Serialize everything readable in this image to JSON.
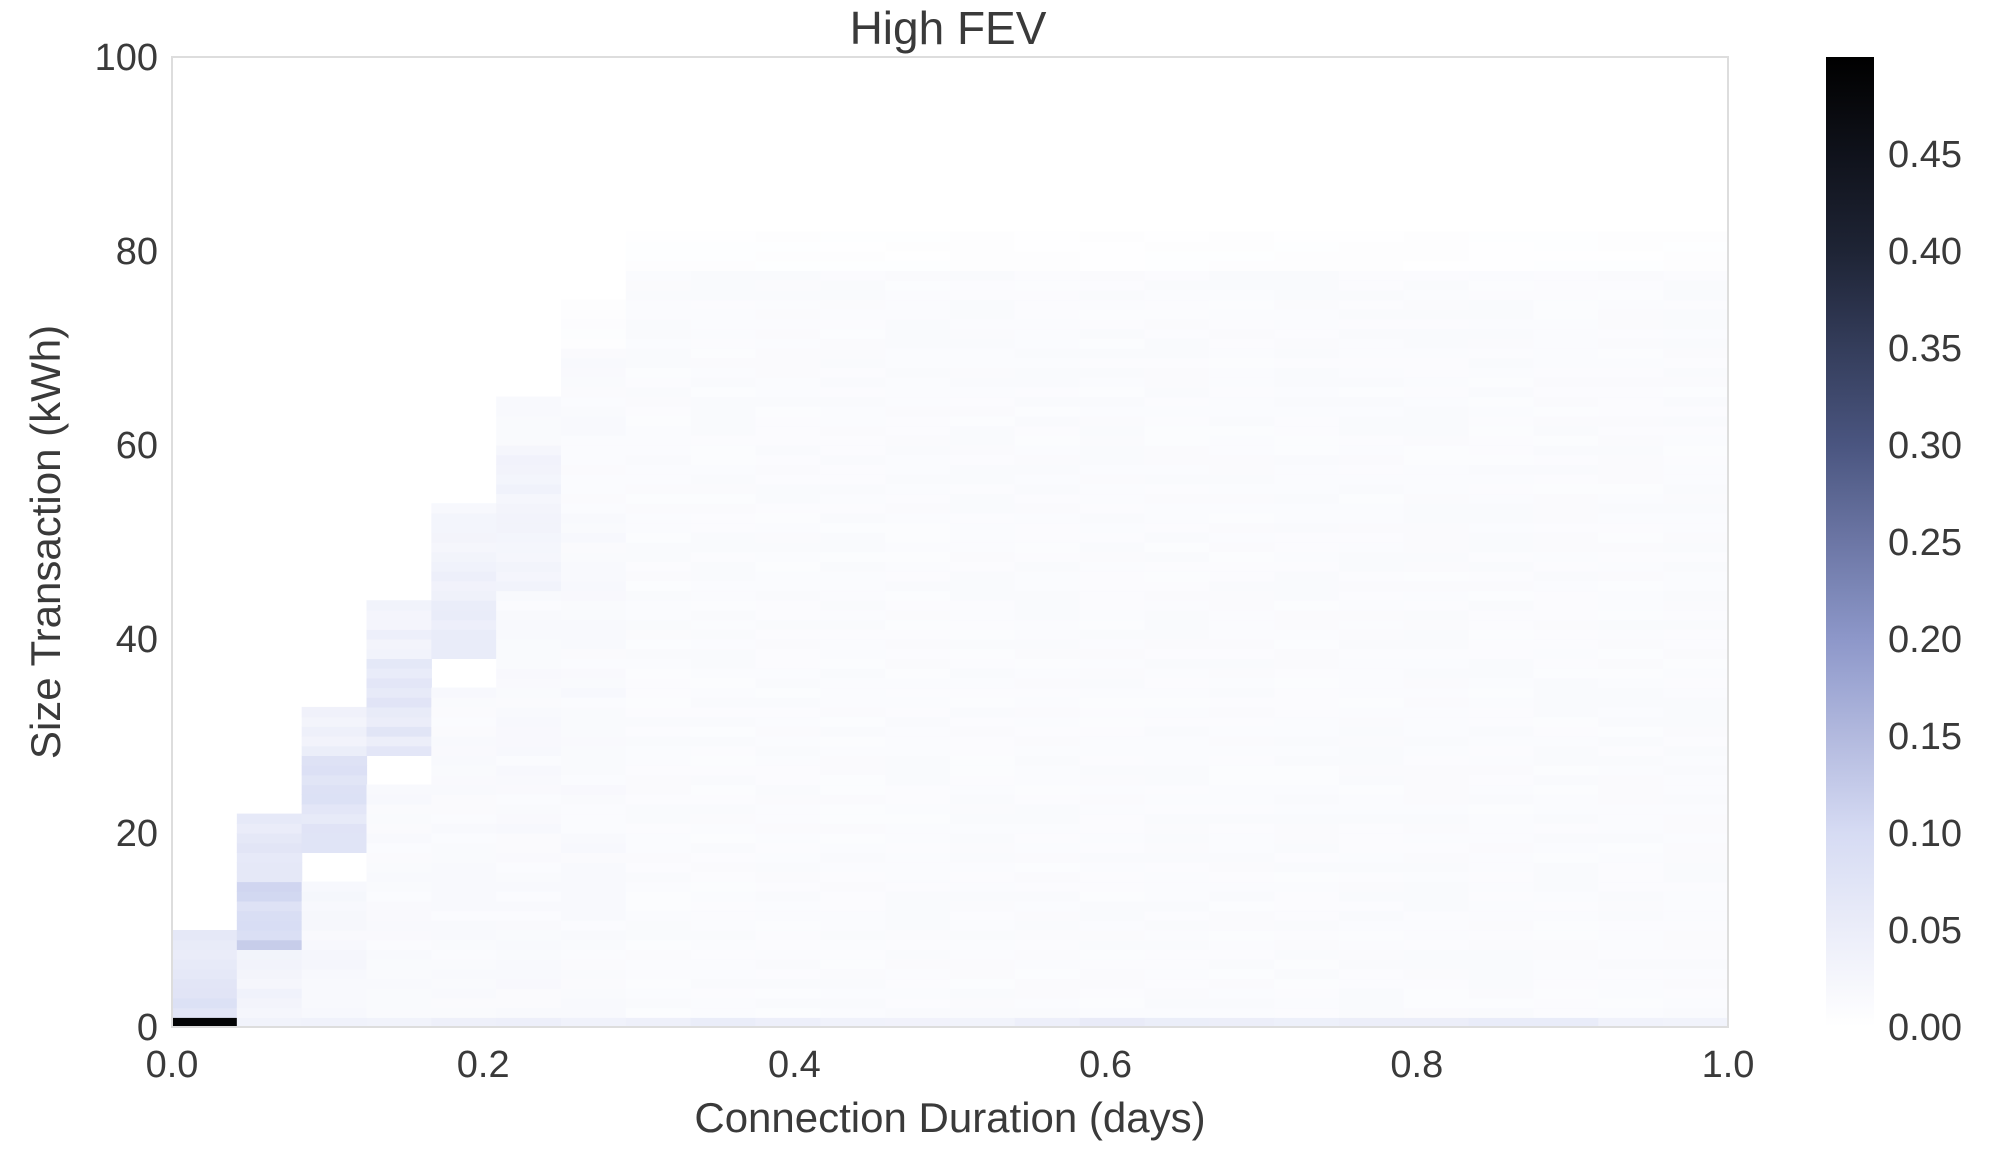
{
  "chart_data": {
    "type": "heatmap",
    "title": "High FEV",
    "xlabel": "Connection Duration (days)",
    "ylabel": "Size Transaction (kWh)",
    "xlim": [
      0.0,
      1.0
    ],
    "ylim": [
      0,
      100
    ],
    "x_ticks": [
      "0.0",
      "0.2",
      "0.4",
      "0.6",
      "0.8",
      "1.0"
    ],
    "y_ticks": [
      "0",
      "20",
      "40",
      "60",
      "80",
      "100"
    ],
    "x_bin_count": 24,
    "y_bin_width_kwh": 1,
    "colorscale": {
      "min": 0.0,
      "max": 0.5,
      "ticks": [
        "0.00",
        "0.05",
        "0.10",
        "0.15",
        "0.20",
        "0.25",
        "0.30",
        "0.35",
        "0.40",
        "0.45"
      ],
      "colors": [
        "#ffffff",
        "#d6dbf3",
        "#8d97c9",
        "#4a5580",
        "#1e2435",
        "#000000"
      ]
    },
    "grid": false,
    "columns": [
      {
        "x_range": [
          0.0,
          0.042
        ],
        "density": [
          {
            "y": [
              0,
              1
            ],
            "value": 0.49
          },
          {
            "y": [
              1,
              5
            ],
            "value": 0.07
          },
          {
            "y": [
              5,
              10
            ],
            "value": 0.06
          }
        ]
      },
      {
        "x_range": [
          0.042,
          0.083
        ],
        "density": [
          {
            "y": [
              0,
              1
            ],
            "value": 0.04
          },
          {
            "y": [
              1,
              8
            ],
            "value": 0.03
          },
          {
            "y": [
              8,
              15
            ],
            "value": 0.1
          },
          {
            "y": [
              15,
              22
            ],
            "value": 0.06
          }
        ]
      },
      {
        "x_range": [
          0.083,
          0.125
        ],
        "density": [
          {
            "y": [
              0,
              1
            ],
            "value": 0.04
          },
          {
            "y": [
              1,
              15
            ],
            "value": 0.02
          },
          {
            "y": [
              18,
              28
            ],
            "value": 0.07
          },
          {
            "y": [
              28,
              33
            ],
            "value": 0.04
          }
        ]
      },
      {
        "x_range": [
          0.125,
          0.167
        ],
        "density": [
          {
            "y": [
              0,
              1
            ],
            "value": 0.04
          },
          {
            "y": [
              1,
              25
            ],
            "value": 0.015
          },
          {
            "y": [
              28,
              38
            ],
            "value": 0.06
          },
          {
            "y": [
              38,
              44
            ],
            "value": 0.035
          }
        ]
      },
      {
        "x_range": [
          0.167,
          0.208
        ],
        "density": [
          {
            "y": [
              0,
              1
            ],
            "value": 0.04
          },
          {
            "y": [
              1,
              35
            ],
            "value": 0.015
          },
          {
            "y": [
              38,
              48
            ],
            "value": 0.045
          },
          {
            "y": [
              48,
              54
            ],
            "value": 0.025
          }
        ]
      },
      {
        "x_range": [
          0.208,
          0.25
        ],
        "density": [
          {
            "y": [
              0,
              1
            ],
            "value": 0.04
          },
          {
            "y": [
              1,
              45
            ],
            "value": 0.015
          },
          {
            "y": [
              45,
              60
            ],
            "value": 0.03
          },
          {
            "y": [
              60,
              65
            ],
            "value": 0.015
          }
        ]
      },
      {
        "x_range": [
          0.25,
          0.292
        ],
        "density": [
          {
            "y": [
              0,
              1
            ],
            "value": 0.04
          },
          {
            "y": [
              1,
              70
            ],
            "value": 0.015
          },
          {
            "y": [
              70,
              75
            ],
            "value": 0.006
          }
        ]
      },
      {
        "x_range": [
          0.292,
          1.0
        ],
        "density": [
          {
            "y": [
              0,
              1
            ],
            "value": 0.045
          },
          {
            "y": [
              1,
              78
            ],
            "value": 0.012
          },
          {
            "y": [
              78,
              82
            ],
            "value": 0.004
          }
        ]
      }
    ]
  }
}
